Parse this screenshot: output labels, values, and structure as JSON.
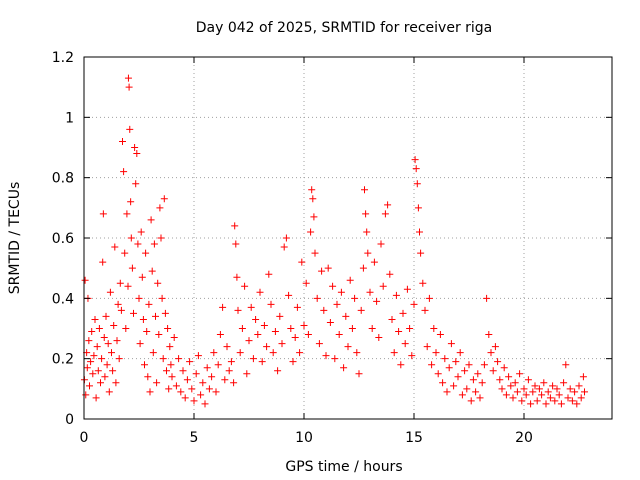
{
  "chart_data": {
    "type": "scatter",
    "title": "Day 042 of 2025, SRMTID for receiver riga",
    "xlabel": "GPS time / hours",
    "ylabel": "SRMTID / TECUs",
    "xlim": [
      0,
      24
    ],
    "ylim": [
      0,
      1.2
    ],
    "x_ticks": [
      0,
      5,
      10,
      15,
      20
    ],
    "x_tick_labels": [
      "0",
      "5",
      "10",
      "15",
      "20"
    ],
    "y_ticks": [
      0,
      0.2,
      0.4,
      0.6,
      0.8,
      1,
      1.2
    ],
    "y_tick_labels": [
      "0",
      "0.2",
      "0.4",
      "0.6",
      "0.8",
      "1",
      "1.2"
    ],
    "grid": true,
    "marker": "+",
    "color": "#ff0000",
    "series": [
      {
        "name": "SRMTID",
        "points": [
          [
            0.02,
            0.13
          ],
          [
            0.05,
            0.46
          ],
          [
            0.08,
            0.08
          ],
          [
            0.12,
            0.22
          ],
          [
            0.15,
            0.17
          ],
          [
            0.18,
            0.4
          ],
          [
            0.22,
            0.26
          ],
          [
            0.25,
            0.11
          ],
          [
            0.3,
            0.19
          ],
          [
            0.35,
            0.29
          ],
          [
            0.4,
            0.15
          ],
          [
            0.45,
            0.21
          ],
          [
            0.5,
            0.33
          ],
          [
            0.55,
            0.07
          ],
          [
            0.6,
            0.24
          ],
          [
            0.65,
            0.16
          ],
          [
            0.7,
            0.3
          ],
          [
            0.75,
            0.12
          ],
          [
            0.8,
            0.2
          ],
          [
            0.85,
            0.52
          ],
          [
            0.88,
            0.68
          ],
          [
            0.92,
            0.27
          ],
          [
            0.95,
            0.14
          ],
          [
            1.0,
            0.34
          ],
          [
            1.05,
            0.18
          ],
          [
            1.1,
            0.25
          ],
          [
            1.15,
            0.09
          ],
          [
            1.2,
            0.42
          ],
          [
            1.25,
            0.22
          ],
          [
            1.3,
            0.16
          ],
          [
            1.35,
            0.31
          ],
          [
            1.4,
            0.57
          ],
          [
            1.45,
            0.12
          ],
          [
            1.5,
            0.26
          ],
          [
            1.55,
            0.38
          ],
          [
            1.6,
            0.2
          ],
          [
            1.65,
            0.45
          ],
          [
            1.7,
            0.36
          ],
          [
            1.75,
            0.92
          ],
          [
            1.8,
            0.82
          ],
          [
            1.85,
            0.55
          ],
          [
            1.9,
            0.3
          ],
          [
            1.95,
            0.68
          ],
          [
            2.0,
            0.44
          ],
          [
            2.02,
            1.13
          ],
          [
            2.05,
            1.1
          ],
          [
            2.08,
            0.96
          ],
          [
            2.12,
            0.72
          ],
          [
            2.15,
            0.6
          ],
          [
            2.2,
            0.5
          ],
          [
            2.25,
            0.35
          ],
          [
            2.3,
            0.9
          ],
          [
            2.35,
            0.78
          ],
          [
            2.4,
            0.88
          ],
          [
            2.45,
            0.58
          ],
          [
            2.5,
            0.4
          ],
          [
            2.55,
            0.25
          ],
          [
            2.6,
            0.62
          ],
          [
            2.65,
            0.47
          ],
          [
            2.7,
            0.33
          ],
          [
            2.75,
            0.18
          ],
          [
            2.8,
            0.55
          ],
          [
            2.85,
            0.29
          ],
          [
            2.9,
            0.14
          ],
          [
            2.95,
            0.38
          ],
          [
            3.0,
            0.09
          ],
          [
            3.05,
            0.66
          ],
          [
            3.1,
            0.49
          ],
          [
            3.15,
            0.22
          ],
          [
            3.2,
            0.58
          ],
          [
            3.25,
            0.34
          ],
          [
            3.3,
            0.12
          ],
          [
            3.35,
            0.45
          ],
          [
            3.4,
            0.28
          ],
          [
            3.45,
            0.7
          ],
          [
            3.5,
            0.6
          ],
          [
            3.55,
            0.4
          ],
          [
            3.6,
            0.2
          ],
          [
            3.65,
            0.73
          ],
          [
            3.7,
            0.35
          ],
          [
            3.75,
            0.16
          ],
          [
            3.8,
            0.3
          ],
          [
            3.85,
            0.1
          ],
          [
            3.9,
            0.24
          ],
          [
            3.95,
            0.18
          ],
          [
            4.0,
            0.14
          ],
          [
            4.1,
            0.27
          ],
          [
            4.2,
            0.11
          ],
          [
            4.3,
            0.2
          ],
          [
            4.4,
            0.09
          ],
          [
            4.5,
            0.16
          ],
          [
            4.6,
            0.07
          ],
          [
            4.7,
            0.13
          ],
          [
            4.8,
            0.19
          ],
          [
            4.9,
            0.1
          ],
          [
            5.0,
            0.06
          ],
          [
            5.1,
            0.15
          ],
          [
            5.2,
            0.21
          ],
          [
            5.3,
            0.08
          ],
          [
            5.4,
            0.12
          ],
          [
            5.5,
            0.05
          ],
          [
            5.6,
            0.17
          ],
          [
            5.7,
            0.1
          ],
          [
            5.8,
            0.14
          ],
          [
            5.9,
            0.22
          ],
          [
            6.0,
            0.09
          ],
          [
            6.1,
            0.18
          ],
          [
            6.2,
            0.28
          ],
          [
            6.3,
            0.37
          ],
          [
            6.4,
            0.13
          ],
          [
            6.5,
            0.24
          ],
          [
            6.6,
            0.16
          ],
          [
            6.7,
            0.19
          ],
          [
            6.8,
            0.12
          ],
          [
            6.85,
            0.64
          ],
          [
            6.9,
            0.58
          ],
          [
            6.95,
            0.47
          ],
          [
            7.0,
            0.36
          ],
          [
            7.1,
            0.22
          ],
          [
            7.2,
            0.3
          ],
          [
            7.3,
            0.44
          ],
          [
            7.4,
            0.15
          ],
          [
            7.5,
            0.26
          ],
          [
            7.6,
            0.37
          ],
          [
            7.7,
            0.2
          ],
          [
            7.8,
            0.33
          ],
          [
            7.9,
            0.28
          ],
          [
            8.0,
            0.42
          ],
          [
            8.1,
            0.19
          ],
          [
            8.2,
            0.31
          ],
          [
            8.3,
            0.24
          ],
          [
            8.4,
            0.48
          ],
          [
            8.5,
            0.38
          ],
          [
            8.6,
            0.22
          ],
          [
            8.7,
            0.29
          ],
          [
            8.8,
            0.16
          ],
          [
            8.9,
            0.34
          ],
          [
            9.0,
            0.25
          ],
          [
            9.1,
            0.57
          ],
          [
            9.2,
            0.6
          ],
          [
            9.3,
            0.41
          ],
          [
            9.4,
            0.3
          ],
          [
            9.5,
            0.19
          ],
          [
            9.6,
            0.27
          ],
          [
            9.7,
            0.37
          ],
          [
            9.8,
            0.22
          ],
          [
            9.9,
            0.52
          ],
          [
            10.0,
            0.31
          ],
          [
            10.1,
            0.45
          ],
          [
            10.2,
            0.28
          ],
          [
            10.3,
            0.62
          ],
          [
            10.35,
            0.76
          ],
          [
            10.4,
            0.73
          ],
          [
            10.45,
            0.67
          ],
          [
            10.5,
            0.55
          ],
          [
            10.6,
            0.4
          ],
          [
            10.7,
            0.25
          ],
          [
            10.8,
            0.49
          ],
          [
            10.9,
            0.36
          ],
          [
            11.0,
            0.21
          ],
          [
            11.1,
            0.5
          ],
          [
            11.2,
            0.32
          ],
          [
            11.3,
            0.44
          ],
          [
            11.4,
            0.2
          ],
          [
            11.5,
            0.38
          ],
          [
            11.6,
            0.28
          ],
          [
            11.7,
            0.42
          ],
          [
            11.8,
            0.17
          ],
          [
            11.9,
            0.34
          ],
          [
            12.0,
            0.24
          ],
          [
            12.1,
            0.46
          ],
          [
            12.2,
            0.3
          ],
          [
            12.3,
            0.4
          ],
          [
            12.4,
            0.22
          ],
          [
            12.5,
            0.15
          ],
          [
            12.6,
            0.36
          ],
          [
            12.7,
            0.5
          ],
          [
            12.75,
            0.76
          ],
          [
            12.8,
            0.68
          ],
          [
            12.85,
            0.62
          ],
          [
            12.9,
            0.55
          ],
          [
            13.0,
            0.42
          ],
          [
            13.1,
            0.3
          ],
          [
            13.2,
            0.52
          ],
          [
            13.3,
            0.39
          ],
          [
            13.4,
            0.27
          ],
          [
            13.5,
            0.58
          ],
          [
            13.6,
            0.44
          ],
          [
            13.7,
            0.68
          ],
          [
            13.8,
            0.71
          ],
          [
            13.9,
            0.48
          ],
          [
            14.0,
            0.33
          ],
          [
            14.1,
            0.22
          ],
          [
            14.2,
            0.41
          ],
          [
            14.3,
            0.29
          ],
          [
            14.4,
            0.18
          ],
          [
            14.5,
            0.35
          ],
          [
            14.6,
            0.25
          ],
          [
            14.7,
            0.43
          ],
          [
            14.8,
            0.3
          ],
          [
            14.9,
            0.21
          ],
          [
            15.0,
            0.38
          ],
          [
            15.05,
            0.86
          ],
          [
            15.1,
            0.83
          ],
          [
            15.15,
            0.78
          ],
          [
            15.2,
            0.7
          ],
          [
            15.25,
            0.62
          ],
          [
            15.3,
            0.55
          ],
          [
            15.4,
            0.45
          ],
          [
            15.5,
            0.36
          ],
          [
            15.6,
            0.24
          ],
          [
            15.7,
            0.4
          ],
          [
            15.8,
            0.18
          ],
          [
            15.9,
            0.3
          ],
          [
            16.0,
            0.22
          ],
          [
            16.1,
            0.15
          ],
          [
            16.2,
            0.28
          ],
          [
            16.3,
            0.12
          ],
          [
            16.4,
            0.2
          ],
          [
            16.5,
            0.09
          ],
          [
            16.6,
            0.17
          ],
          [
            16.7,
            0.25
          ],
          [
            16.8,
            0.11
          ],
          [
            16.9,
            0.19
          ],
          [
            17.0,
            0.14
          ],
          [
            17.1,
            0.22
          ],
          [
            17.2,
            0.08
          ],
          [
            17.3,
            0.16
          ],
          [
            17.4,
            0.1
          ],
          [
            17.5,
            0.18
          ],
          [
            17.6,
            0.06
          ],
          [
            17.7,
            0.13
          ],
          [
            17.8,
            0.09
          ],
          [
            17.9,
            0.15
          ],
          [
            18.0,
            0.07
          ],
          [
            18.1,
            0.12
          ],
          [
            18.2,
            0.18
          ],
          [
            18.3,
            0.4
          ],
          [
            18.4,
            0.28
          ],
          [
            18.5,
            0.22
          ],
          [
            18.6,
            0.16
          ],
          [
            18.7,
            0.24
          ],
          [
            18.8,
            0.19
          ],
          [
            18.9,
            0.13
          ],
          [
            19.0,
            0.1
          ],
          [
            19.1,
            0.17
          ],
          [
            19.2,
            0.08
          ],
          [
            19.3,
            0.14
          ],
          [
            19.4,
            0.11
          ],
          [
            19.5,
            0.07
          ],
          [
            19.6,
            0.12
          ],
          [
            19.7,
            0.09
          ],
          [
            19.8,
            0.15
          ],
          [
            19.9,
            0.06
          ],
          [
            20.0,
            0.1
          ],
          [
            20.1,
            0.08
          ],
          [
            20.2,
            0.13
          ],
          [
            20.3,
            0.05
          ],
          [
            20.4,
            0.09
          ],
          [
            20.5,
            0.11
          ],
          [
            20.6,
            0.06
          ],
          [
            20.7,
            0.1
          ],
          [
            20.8,
            0.08
          ],
          [
            20.9,
            0.12
          ],
          [
            21.0,
            0.05
          ],
          [
            21.1,
            0.09
          ],
          [
            21.2,
            0.07
          ],
          [
            21.3,
            0.11
          ],
          [
            21.4,
            0.06
          ],
          [
            21.5,
            0.1
          ],
          [
            21.6,
            0.08
          ],
          [
            21.7,
            0.05
          ],
          [
            21.8,
            0.12
          ],
          [
            21.9,
            0.18
          ],
          [
            22.0,
            0.07
          ],
          [
            22.1,
            0.1
          ],
          [
            22.2,
            0.06
          ],
          [
            22.3,
            0.09
          ],
          [
            22.4,
            0.05
          ],
          [
            22.5,
            0.11
          ],
          [
            22.6,
            0.07
          ],
          [
            22.7,
            0.14
          ],
          [
            22.75,
            0.09
          ]
        ]
      }
    ]
  }
}
